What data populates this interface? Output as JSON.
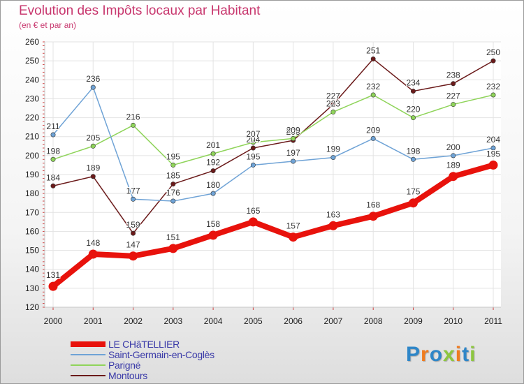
{
  "title": "Evolution des Impôts locaux par Habitant",
  "subtitle": "(en € et par an)",
  "logo": {
    "text": "Proxiti",
    "colors": [
      "#2e86c8",
      "#f07b1e",
      "#2e86c8",
      "#8dc63f",
      "#f07b1e",
      "#2e86c8",
      "#8dc63f"
    ]
  },
  "chart_data": {
    "type": "line",
    "title": "Evolution des Impôts locaux par Habitant",
    "subtitle": "(en € et par an)",
    "x": [
      "2000",
      "2001",
      "2002",
      "2003",
      "2004",
      "2005",
      "2006",
      "2007",
      "2008",
      "2009",
      "2010",
      "2011"
    ],
    "ylim": [
      120,
      260
    ],
    "yticks": [
      120,
      130,
      140,
      150,
      160,
      170,
      180,
      190,
      200,
      210,
      220,
      230,
      240,
      250,
      260
    ],
    "grid": true,
    "legend_position": "bottom-left",
    "series": [
      {
        "name": "Montours",
        "color": "#6b1a1a",
        "emphasis": false,
        "values": [
          184,
          189,
          159,
          185,
          192,
          204,
          208,
          227,
          251,
          234,
          238,
          250
        ]
      },
      {
        "name": "Parigné",
        "color": "#8fd45a",
        "emphasis": false,
        "values": [
          198,
          205,
          216,
          195,
          201,
          207,
          209,
          223,
          232,
          220,
          227,
          232
        ]
      },
      {
        "name": "Saint-Germain-en-Coglès",
        "color": "#6fa3d6",
        "emphasis": false,
        "values": [
          211,
          236,
          177,
          176,
          180,
          195,
          197,
          199,
          209,
          198,
          200,
          204
        ]
      },
      {
        "name": "LE CHâTELLIER",
        "color": "#e8120c",
        "emphasis": true,
        "values": [
          131,
          148,
          147,
          151,
          158,
          165,
          157,
          163,
          168,
          175,
          189,
          195
        ]
      }
    ],
    "legend_order": [
      "LE CHâTELLIER",
      "Saint-Germain-en-Coglès",
      "Parigné",
      "Montours"
    ]
  }
}
